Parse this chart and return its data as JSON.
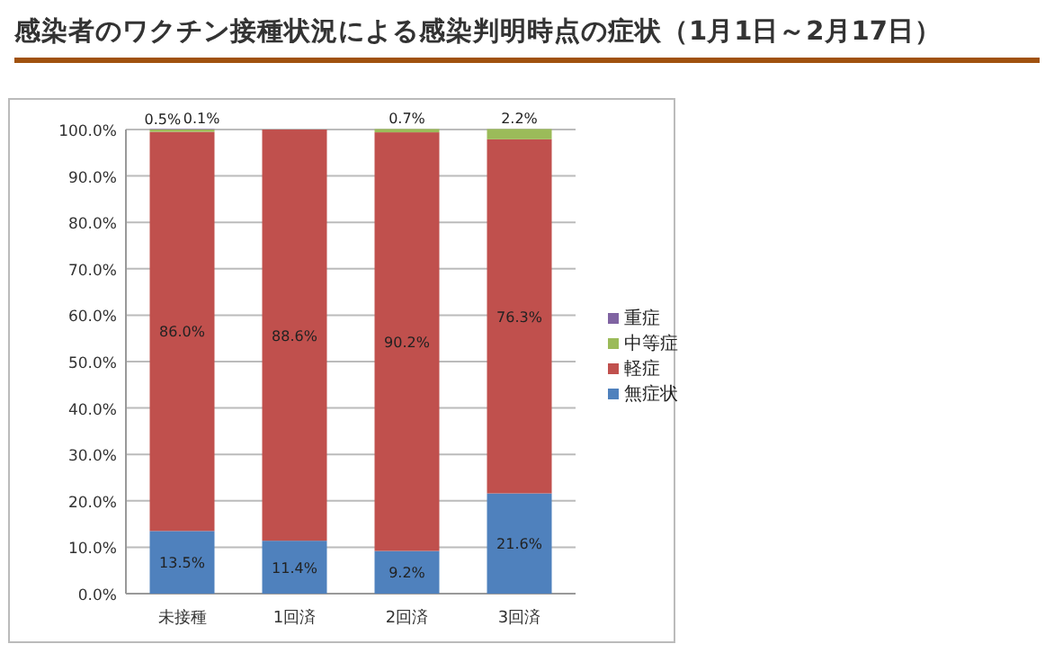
{
  "chart_data": {
    "type": "bar",
    "stacked": true,
    "title": "感染者のワクチン接種状況による感染判明時点の症状（1月1日～2月17日）",
    "categories": [
      "未接種",
      "1回済",
      "2回済",
      "3回済"
    ],
    "series": [
      {
        "name": "無症状",
        "color": "#4f81bd",
        "values": [
          13.5,
          11.4,
          9.2,
          21.6
        ],
        "value_labels": [
          "13.5%",
          "11.4%",
          "9.2%",
          "21.6%"
        ]
      },
      {
        "name": "軽症",
        "color": "#c0504d",
        "values": [
          86.0,
          88.6,
          90.2,
          76.3
        ],
        "value_labels": [
          "86.0%",
          "88.6%",
          "90.2%",
          "76.3%"
        ]
      },
      {
        "name": "中等症",
        "color": "#9bbb59",
        "values": [
          0.5,
          0,
          0.7,
          2.2
        ],
        "value_labels": [
          "0.5%",
          null,
          "0.7%",
          "2.2%"
        ]
      },
      {
        "name": "重症",
        "color": "#8064a2",
        "values": [
          0.1,
          0,
          0,
          0
        ],
        "value_labels": [
          "0.1%",
          null,
          null,
          null
        ]
      }
    ],
    "ylim": [
      0,
      100
    ],
    "yticks": [
      {
        "value": 0,
        "label": "0.0%"
      },
      {
        "value": 10,
        "label": "10.0%"
      },
      {
        "value": 20,
        "label": "20.0%"
      },
      {
        "value": 30,
        "label": "30.0%"
      },
      {
        "value": 40,
        "label": "40.0%"
      },
      {
        "value": 50,
        "label": "50.0%"
      },
      {
        "value": 60,
        "label": "60.0%"
      },
      {
        "value": 70,
        "label": "70.0%"
      },
      {
        "value": 80,
        "label": "80.0%"
      },
      {
        "value": 90,
        "label": "90.0%"
      },
      {
        "value": 100,
        "label": "100.0%"
      }
    ],
    "grid": "y",
    "legend": "right"
  }
}
